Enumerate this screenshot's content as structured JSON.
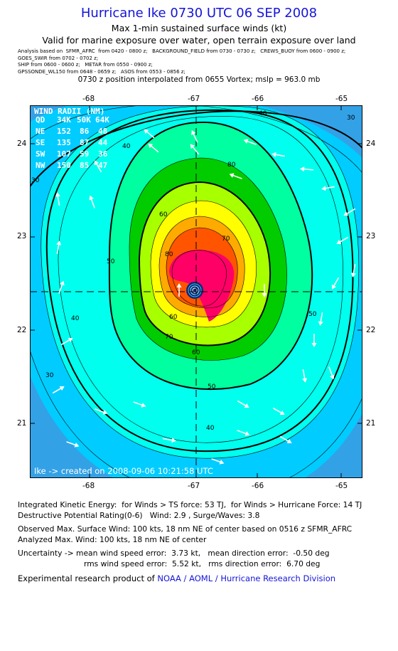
{
  "header": {
    "title": "Hurricane Ike 0730 UTC 06 SEP 2008",
    "subtitle": "Max 1-min sustained surface winds (kt)",
    "valid_for": "Valid for marine exposure over water, open terrain exposure over land",
    "analysis_lines": [
      "Analysis based on  SFMR_AFRC  from 0420 - 0800 z;   BACKGROUND_FIELD from 0730 - 0730 z;   CREWS_BUOY from 0600 - 0900 z;",
      "GOES_SWIR from 0702 - 0702 z;",
      "SHIP from 0600 - 0600 z;   METAR from 0550 - 0900 z;",
      "GPSSONDE_WL150 from 0648 - 0659 z;   ASOS from 0553 - 0856 z;"
    ],
    "position_note": "0730 z position interpolated from 0655 Vortex; mslp = 963.0 mb"
  },
  "map": {
    "lon_ticks": [
      "-68",
      "-67",
      "-66",
      "-65"
    ],
    "lat_ticks": [
      "24",
      "23",
      "22",
      "21"
    ],
    "center": {
      "lon": -66.7,
      "lat": 22.4
    },
    "contour_labels": [
      "40",
      "30",
      "30",
      "40",
      "40",
      "50",
      "50",
      "50",
      "60",
      "60",
      "70",
      "70",
      "80",
      "80",
      "60",
      "40",
      "30"
    ],
    "wind_radii": {
      "header": "WIND RADII (NM)",
      "columns": [
        "QD",
        "34K",
        "50K",
        "64K"
      ],
      "rows": [
        [
          "NE",
          "152",
          "86",
          "48"
        ],
        [
          "SE",
          "135",
          "87",
          "44"
        ],
        [
          "SW",
          "107",
          "59",
          "36"
        ],
        [
          "NW",
          "150",
          "85",
          "47"
        ]
      ]
    },
    "footer_text": "Ike -> created on 2008-09-06 10:21:58 UTC",
    "colors": {
      "ocean": "#33a1e6",
      "band_30": "#00ccff",
      "band_40": "#00ffee",
      "band_50": "#00ffa0",
      "band_60": "#00cc00",
      "band_64": "#a8ff00",
      "band_70": "#ffff00",
      "band_80": "#ffaa00",
      "band_90": "#ff5500",
      "band_100": "#ff0066",
      "eye": "#0a2a7a"
    }
  },
  "info": {
    "ike": "Integrated Kinetic Energy:  for Winds > TS force: 53 TJ,  for Winds > Hurricane Force: 14 TJ",
    "dp": "Destructive Potential Rating(0-6)   Wind: 2.9 , Surge/Waves: 3.8",
    "obs": "Observed Max. Surface Wind: 100 kts, 18 nm NE of center based on 0516 z SFMR_AFRC",
    "analyzed": "Analyzed Max. Wind: 100 kts, 18 nm NE of center",
    "uncert1": "Uncertainty -> mean wind speed error:  3.73 kt,   mean direction error:  -0.50 deg",
    "uncert2": "rms wind speed error:  5.52 kt,   rms direction error:  6.70 deg",
    "credit_prefix": "Experimental research product of ",
    "credit_link": "NOAA / AOML / Hurricane Research Division"
  }
}
